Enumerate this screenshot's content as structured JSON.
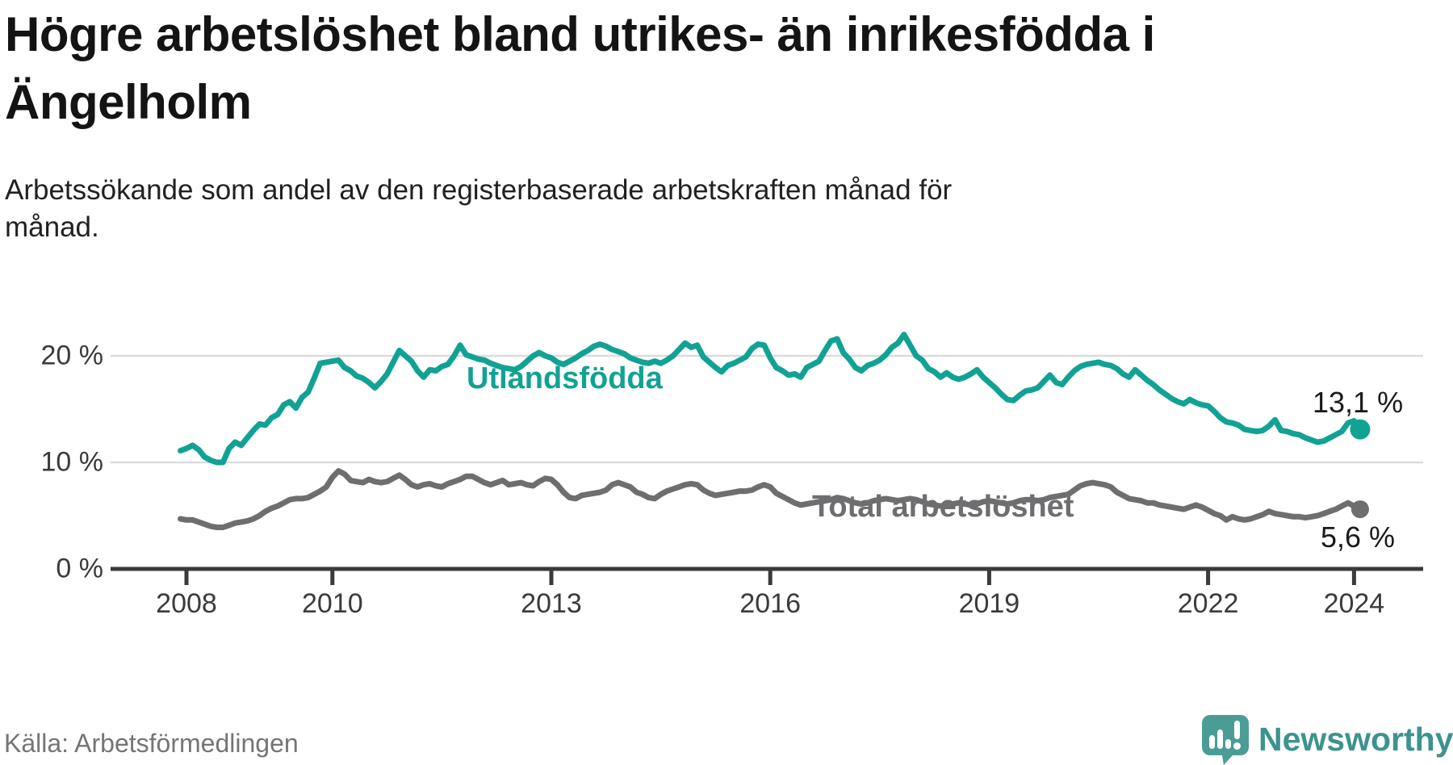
{
  "header": {
    "title_line1": "Högre arbetslöshet bland utrikes- än inrikesfödda i",
    "title_line2": "Ängelholm",
    "subtitle_line1": "Arbetssökande som andel av den registerbaserade arbetskraften månad för",
    "subtitle_line2": "månad."
  },
  "footer": {
    "source": "Källa: Arbetsförmedlingen",
    "brand": "Newsworthy",
    "logo_icon": "bar-chart-speech-bubble-icon"
  },
  "colors": {
    "title": "#141414",
    "subtitle": "#212121",
    "axis": "#3a3a3a",
    "tick_label": "#3b3b3b",
    "grid": "#dcdcdc",
    "teal": "#11A294",
    "gray": "#6E6E70",
    "value_label": "#1a1a1a",
    "source": "#757575",
    "logo_icon": "#4C9C96",
    "logo_text": "#3D938D",
    "background": "#ffffff"
  },
  "chart_data": {
    "type": "line",
    "title": "Högre arbetslöshet bland utrikes- än inrikesfödda i Ängelholm",
    "subtitle": "Arbetssökande som andel av den registerbaserade arbetskraften månad för månad.",
    "x_unit": "month",
    "x_start": "2007-12",
    "x_end": "2024-02",
    "xticks": [
      2008,
      2010,
      2013,
      2016,
      2019,
      2022,
      2024
    ],
    "ytick_labels": [
      "0 %",
      "10 %",
      "20 %"
    ],
    "ytick_values": [
      0,
      10,
      20
    ],
    "ylim": [
      0,
      25
    ],
    "grid": "horizontal",
    "legend": "inline-labels",
    "series": [
      {
        "name": "Utlandsfödda",
        "color": "#11A294",
        "end_label": "13,1 %",
        "end_value": 13.1,
        "values": [
          11.1,
          11.3,
          11.6,
          11.2,
          10.5,
          10.2,
          10.0,
          10.0,
          11.3,
          11.9,
          11.6,
          12.3,
          13.0,
          13.6,
          13.5,
          14.2,
          14.5,
          15.4,
          15.7,
          15.1,
          16.1,
          16.6,
          17.9,
          19.3,
          19.4,
          19.5,
          19.6,
          18.9,
          18.6,
          18.1,
          17.9,
          17.5,
          17.0,
          17.6,
          18.3,
          19.4,
          20.5,
          20.0,
          19.5,
          18.6,
          18.0,
          18.7,
          18.6,
          19.0,
          19.2,
          20.0,
          21.0,
          20.1,
          19.9,
          19.7,
          19.6,
          19.3,
          19.1,
          18.9,
          18.8,
          18.7,
          19.0,
          19.5,
          20.0,
          20.3,
          20.0,
          19.8,
          19.4,
          19.2,
          19.5,
          19.8,
          20.2,
          20.5,
          20.9,
          21.1,
          20.9,
          20.6,
          20.4,
          20.2,
          19.8,
          19.6,
          19.4,
          19.3,
          19.5,
          19.3,
          19.6,
          20.0,
          20.6,
          21.2,
          20.8,
          21.0,
          19.9,
          19.4,
          18.9,
          18.5,
          19.1,
          19.3,
          19.6,
          19.9,
          20.7,
          21.1,
          21.0,
          19.8,
          18.9,
          18.6,
          18.2,
          18.3,
          18.0,
          18.9,
          19.2,
          19.5,
          20.5,
          21.4,
          21.6,
          20.3,
          19.7,
          18.9,
          18.6,
          19.1,
          19.3,
          19.6,
          20.1,
          20.8,
          21.2,
          22.0,
          21.0,
          20.0,
          19.6,
          18.8,
          18.5,
          18.0,
          18.4,
          18.0,
          17.8,
          18.0,
          18.3,
          18.7,
          18.0,
          17.5,
          17.0,
          16.4,
          15.9,
          15.8,
          16.3,
          16.7,
          16.8,
          17.0,
          17.6,
          18.2,
          17.5,
          17.3,
          18.0,
          18.6,
          19.0,
          19.2,
          19.3,
          19.4,
          19.2,
          19.1,
          18.8,
          18.3,
          18.0,
          18.7,
          18.2,
          17.7,
          17.3,
          16.8,
          16.4,
          16.0,
          15.7,
          15.5,
          15.9,
          15.6,
          15.4,
          15.3,
          14.8,
          14.2,
          13.8,
          13.7,
          13.5,
          13.1,
          13.0,
          12.9,
          13.0,
          13.4,
          14.0,
          13.0,
          12.9,
          12.7,
          12.6,
          12.3,
          12.1,
          11.9,
          12.0,
          12.3,
          12.6,
          12.9,
          13.7,
          13.9,
          13.1
        ]
      },
      {
        "name": "Total arbetslöshet",
        "color": "#6E6E70",
        "end_label": "5,6 %",
        "end_value": 5.6,
        "values": [
          4.7,
          4.6,
          4.6,
          4.4,
          4.2,
          4.0,
          3.9,
          3.9,
          4.1,
          4.3,
          4.4,
          4.5,
          4.7,
          5.0,
          5.4,
          5.7,
          5.9,
          6.2,
          6.5,
          6.6,
          6.6,
          6.7,
          7.0,
          7.3,
          7.7,
          8.6,
          9.2,
          8.9,
          8.3,
          8.2,
          8.1,
          8.4,
          8.2,
          8.1,
          8.2,
          8.5,
          8.8,
          8.4,
          7.9,
          7.7,
          7.9,
          8.0,
          7.8,
          7.7,
          8.0,
          8.2,
          8.4,
          8.7,
          8.7,
          8.4,
          8.1,
          7.9,
          8.1,
          8.3,
          7.9,
          8.0,
          8.1,
          7.9,
          7.8,
          8.2,
          8.5,
          8.4,
          7.9,
          7.2,
          6.7,
          6.6,
          6.9,
          7.0,
          7.1,
          7.2,
          7.4,
          7.9,
          8.1,
          7.9,
          7.7,
          7.2,
          7.0,
          6.7,
          6.6,
          7.0,
          7.3,
          7.5,
          7.7,
          7.9,
          8.0,
          7.9,
          7.4,
          7.1,
          6.9,
          7.0,
          7.1,
          7.2,
          7.3,
          7.3,
          7.4,
          7.7,
          7.9,
          7.7,
          7.1,
          6.8,
          6.5,
          6.2,
          6.0,
          6.1,
          6.2,
          6.3,
          6.4,
          6.5,
          6.7,
          6.6,
          6.4,
          6.2,
          6.1,
          6.2,
          6.4,
          6.5,
          6.6,
          6.5,
          6.4,
          6.5,
          6.6,
          6.5,
          6.3,
          6.1,
          6.0,
          5.9,
          6.0,
          6.1,
          6.2,
          6.1,
          6.0,
          6.1,
          6.3,
          6.4,
          6.3,
          6.2,
          6.1,
          6.2,
          6.4,
          6.5,
          6.5,
          6.4,
          6.5,
          6.7,
          6.8,
          6.9,
          7.0,
          7.4,
          7.8,
          8.0,
          8.1,
          8.0,
          7.9,
          7.7,
          7.2,
          6.9,
          6.6,
          6.5,
          6.4,
          6.2,
          6.2,
          6.0,
          5.9,
          5.8,
          5.7,
          5.6,
          5.8,
          6.0,
          5.8,
          5.5,
          5.2,
          5.0,
          4.6,
          4.9,
          4.7,
          4.6,
          4.7,
          4.9,
          5.1,
          5.4,
          5.2,
          5.1,
          5.0,
          4.9,
          4.9,
          4.8,
          4.9,
          5.0,
          5.2,
          5.4,
          5.6,
          5.9,
          6.2,
          5.9,
          5.6
        ]
      }
    ]
  }
}
